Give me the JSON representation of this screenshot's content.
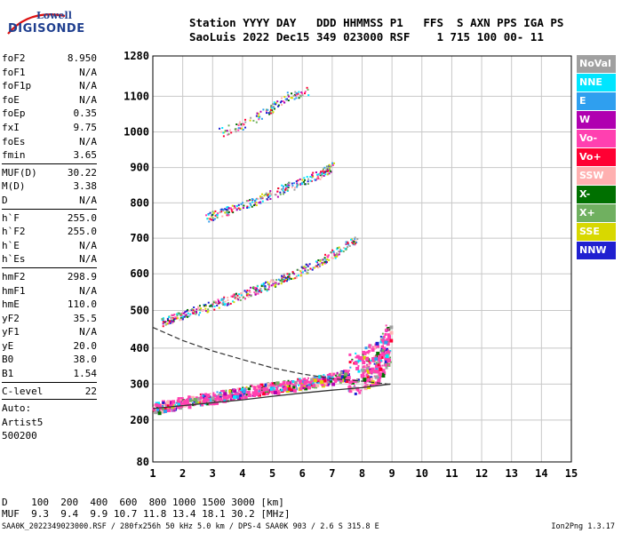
{
  "logo": {
    "line1": "Lowell",
    "line2": "DIGISONDE"
  },
  "header": {
    "line1": "Station YYYY DAY   DDD HHMMSS P1   FFS  S AXN PPS IGA PS",
    "line2": "SaoLuis 2022 Dec15 349 023000 RSF    1 715 100 00- 11"
  },
  "params": [
    [
      {
        "k": "foF2",
        "v": "8.950"
      },
      {
        "k": "foF1",
        "v": "N/A"
      },
      {
        "k": "foF1p",
        "v": "N/A"
      },
      {
        "k": "foE",
        "v": "N/A"
      },
      {
        "k": "foEp",
        "v": "0.35"
      },
      {
        "k": "fxI",
        "v": "9.75"
      },
      {
        "k": "foEs",
        "v": "N/A"
      },
      {
        "k": "fmin",
        "v": "3.65"
      }
    ],
    [
      {
        "k": "MUF(D)",
        "v": "30.22"
      },
      {
        "k": "M(D)",
        "v": "3.38"
      },
      {
        "k": "D",
        "v": "N/A"
      }
    ],
    [
      {
        "k": "h`F",
        "v": "255.0"
      },
      {
        "k": "h`F2",
        "v": "255.0"
      },
      {
        "k": "h`E",
        "v": "N/A"
      },
      {
        "k": "h`Es",
        "v": "N/A"
      }
    ],
    [
      {
        "k": "hmF2",
        "v": "298.9"
      },
      {
        "k": "hmF1",
        "v": "N/A"
      },
      {
        "k": "hmE",
        "v": "110.0"
      },
      {
        "k": "yF2",
        "v": "35.5"
      },
      {
        "k": "yF1",
        "v": "N/A"
      },
      {
        "k": "yE",
        "v": "20.0"
      },
      {
        "k": "B0",
        "v": "38.0"
      },
      {
        "k": "B1",
        "v": "1.54"
      }
    ],
    [
      {
        "k": "C-level",
        "v": "22"
      }
    ]
  ],
  "scaling": {
    "line1": "Auto:",
    "line2": "Artist5",
    "line3": "500200"
  },
  "legend": [
    {
      "label": "NoVal",
      "color": "#a0a0a0"
    },
    {
      "label": "NNE",
      "color": "#00e5ff"
    },
    {
      "label": "E",
      "color": "#2f9fef"
    },
    {
      "label": "W",
      "color": "#b000b0"
    },
    {
      "label": "Vo-",
      "color": "#ff40b0"
    },
    {
      "label": "Vo+",
      "color": "#ff0033"
    },
    {
      "label": "SSW",
      "color": "#ffb0b0"
    },
    {
      "label": "X-",
      "color": "#007000"
    },
    {
      "label": "X+",
      "color": "#70b060"
    },
    {
      "label": "SSE",
      "color": "#d8d800"
    },
    {
      "label": "NNW",
      "color": "#2020d0"
    }
  ],
  "muf_table": {
    "line1": "D    100  200  400  600  800 1000 1500 3000 [km]",
    "line2": "MUF  9.3  9.4  9.9 10.7 11.8 13.4 18.1 30.2 [MHz]"
  },
  "footer": "SAA0K_2022349023000.RSF / 280fx256h 50 kHz 5.0 km / DPS-4 SAA0K 903 / 2.6 S 315.8 E",
  "version": "Ion2Png 1.3.17",
  "chart_data": {
    "type": "scatter",
    "xlabel": "",
    "ylabel": "",
    "xlim": [
      1,
      15
    ],
    "ylim": [
      80,
      1280
    ],
    "x_ticks": [
      1,
      2,
      3,
      4,
      5,
      6,
      7,
      8,
      9,
      10,
      11,
      12,
      13,
      14,
      15
    ],
    "y_ticks": [
      80,
      200,
      300,
      400,
      500,
      600,
      700,
      800,
      900,
      1000,
      1100,
      1280
    ],
    "grid": true,
    "y_scale": "nonlinear",
    "y_axis_map": [
      [
        80,
        0
      ],
      [
        200,
        0.127
      ],
      [
        300,
        0.236
      ],
      [
        400,
        0.345
      ],
      [
        500,
        0.459
      ],
      [
        600,
        0.57
      ],
      [
        700,
        0.678
      ],
      [
        800,
        0.785
      ],
      [
        900,
        0.892
      ],
      [
        1000,
        1.0
      ],
      [
        1100,
        1.108
      ],
      [
        1280,
        1.23
      ]
    ],
    "traces": [
      {
        "name": "F2 first hop",
        "x": [
          1.0,
          2,
          3,
          4,
          5,
          6,
          7,
          8,
          8.5,
          8.9
        ],
        "y": [
          235,
          252,
          265,
          280,
          292,
          305,
          318,
          340,
          365,
          420
        ]
      },
      {
        "name": "F2 second hop",
        "x": [
          1.3,
          2,
          3,
          4,
          5,
          6,
          7,
          7.8
        ],
        "y": [
          470,
          490,
          515,
          545,
          575,
          610,
          655,
          700
        ]
      },
      {
        "name": "F2 third hop",
        "x": [
          2.8,
          3.5,
          4.5,
          5.5,
          6.5,
          7.0
        ],
        "y": [
          760,
          780,
          810,
          845,
          880,
          905
        ]
      },
      {
        "name": "F2 fourth hop",
        "x": [
          3.2,
          4,
          4.8,
          5.5,
          6.2
        ],
        "y": [
          1000,
          1020,
          1060,
          1100,
          1130
        ]
      },
      {
        "name": "Profile",
        "x": [
          1.0,
          2.0,
          3.0,
          4.0,
          5.0,
          6.0,
          7.0,
          8.0,
          8.95
        ],
        "y": [
          455,
          420,
          392,
          368,
          345,
          328,
          315,
          308,
          299
        ]
      },
      {
        "name": "Model trace",
        "x": [
          1,
          2,
          3,
          4,
          5,
          6,
          7,
          8,
          8.95
        ],
        "y": [
          232,
          240,
          248,
          256,
          266,
          275,
          283,
          290,
          300
        ]
      }
    ]
  }
}
